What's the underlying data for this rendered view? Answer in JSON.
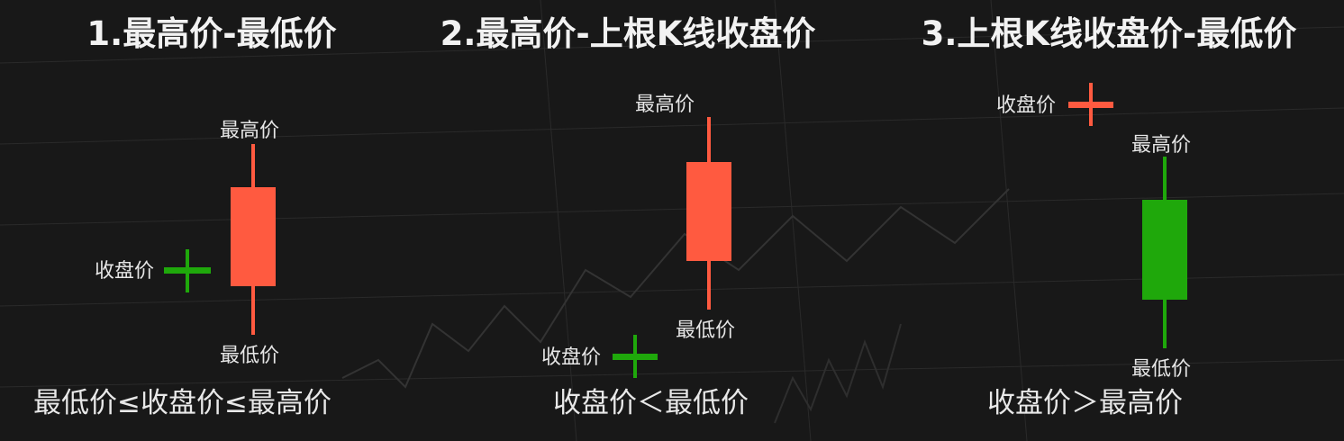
{
  "colors": {
    "bullish": "#ff5a40",
    "bearish": "#1fa80b",
    "background": "#181818"
  },
  "panels": [
    {
      "title": "1.最高价-最低价",
      "high_label": "最高价",
      "low_label": "最低价",
      "close_label": "收盘价",
      "condition": "最低价≤收盘价≤最高价"
    },
    {
      "title": "2.最高价-上根K线收盘价",
      "high_label": "最高价",
      "low_label": "最低价",
      "close_label": "收盘价",
      "condition": "收盘价＜最低价"
    },
    {
      "title": "3.上根K线收盘价-最低价",
      "high_label": "最高价",
      "low_label": "最低价",
      "close_label": "收盘价",
      "condition": "收盘价＞最高价"
    }
  ]
}
